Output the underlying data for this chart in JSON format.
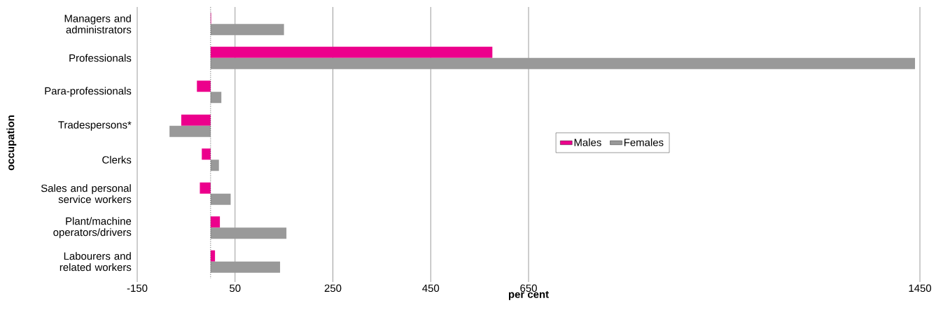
{
  "chart_data": {
    "type": "bar",
    "orientation": "horizontal",
    "xlabel": "per cent",
    "ylabel": "occupation",
    "categories": [
      "Managers and administrators",
      "Professionals",
      "Para-professionals",
      "Tradespersons*",
      "Clerks",
      "Sales and personal service workers",
      "Plant/machine operators/drivers",
      "Labourers and related workers"
    ],
    "series": [
      {
        "name": "Males",
        "color": "#ec008c",
        "values": [
          1,
          576,
          -28,
          -60,
          -18,
          -22,
          19,
          9
        ]
      },
      {
        "name": "Females",
        "color": "#999999",
        "values": [
          150,
          1440,
          22,
          -84,
          17,
          41,
          155,
          142
        ]
      }
    ],
    "xlim": [
      -150,
      1450
    ],
    "xticks": [
      -150,
      50,
      250,
      450,
      650,
      1450
    ],
    "ref_lines": [
      {
        "axis": "x",
        "value": 0,
        "line_style": "dotted"
      }
    ],
    "grid": "x",
    "legend": "right"
  }
}
